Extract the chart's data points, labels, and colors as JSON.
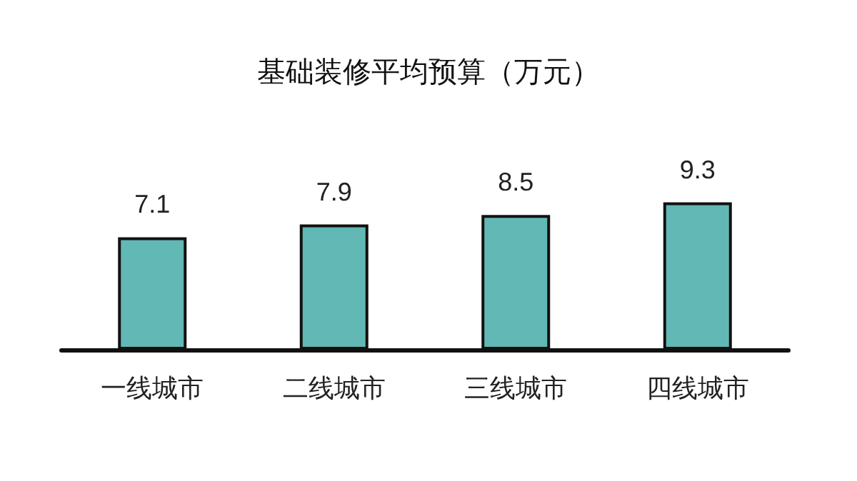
{
  "chart_data": {
    "type": "bar",
    "title": "基础装修平均预算（万元）",
    "categories": [
      "一线城市",
      "二线城市",
      "三线城市",
      "四线城市"
    ],
    "values": [
      7.1,
      7.9,
      8.5,
      9.3
    ],
    "color": "#62b8b4",
    "tick_labels": "x",
    "data_labels": true
  }
}
